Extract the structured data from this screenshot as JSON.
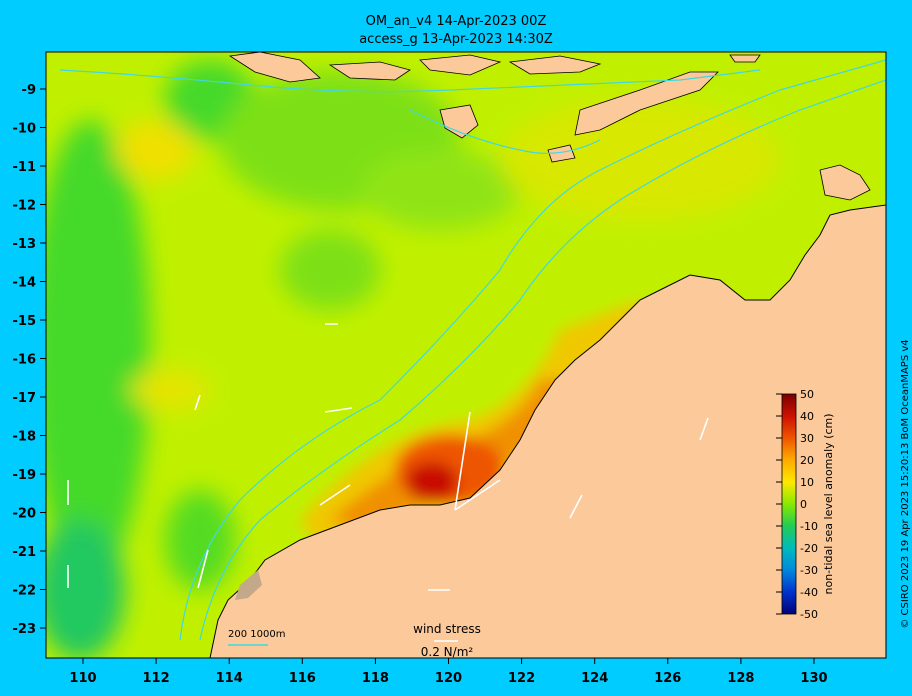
{
  "header": {
    "title_line1": "OM_an_v4  14-Apr-2023 00Z",
    "title_line2": "access_g 13-Apr-2023 14:30Z"
  },
  "axes": {
    "x_ticks": [
      "110",
      "112",
      "114",
      "116",
      "118",
      "120",
      "122",
      "124",
      "126",
      "128",
      "130"
    ],
    "y_ticks": [
      "-9",
      "-10",
      "-11",
      "-12",
      "-13",
      "-14",
      "-15",
      "-16",
      "-17",
      "-18",
      "-19",
      "-20",
      "-21",
      "-22",
      "-23"
    ]
  },
  "colorbar": {
    "label": "non-tidal sea level anomaly (cm)",
    "ticks": [
      "50",
      "40",
      "30",
      "20",
      "10",
      "0",
      "-10",
      "-20",
      "-30",
      "-40",
      "-50"
    ]
  },
  "credit": "© CSIRO 2023  19 Apr 2023 15:20:13 BoM OceanMAPS v4",
  "legend": {
    "depth": "200  1000m",
    "wind_title": "wind stress",
    "wind_scale": "0.2 N/m²"
  },
  "colors": {
    "land": "#fbc99a",
    "ocean_base": "#c0f000",
    "contour": "#40d8e0",
    "background": "#00ccff"
  },
  "chart_data": {
    "type": "heatmap",
    "xlim": [
      109,
      132
    ],
    "ylim": [
      -24,
      -8
    ],
    "zlim": [
      -50,
      50
    ],
    "colormap": "jet",
    "features": [
      {
        "name": "max anomaly",
        "lon": 119.8,
        "lat": -19.6,
        "value": 45
      },
      {
        "name": "min anomaly",
        "lon": 110.2,
        "lat": -22.5,
        "value": -5
      }
    ]
  }
}
